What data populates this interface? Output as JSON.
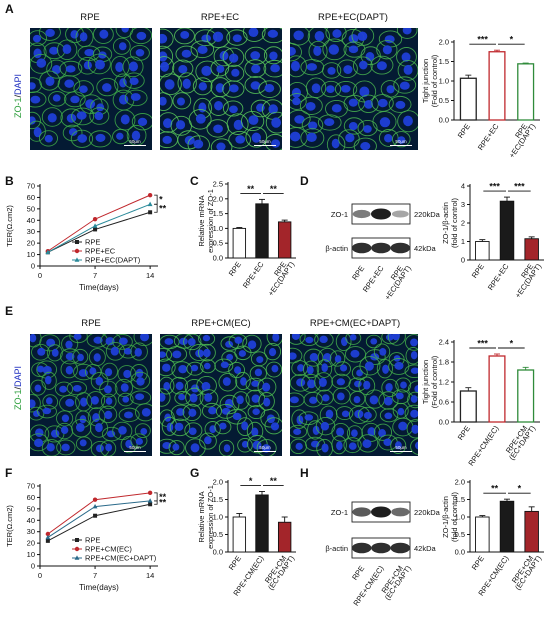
{
  "panel_labels": [
    "A",
    "B",
    "C",
    "D",
    "E",
    "F",
    "G",
    "H"
  ],
  "micro_rows": [
    {
      "label": "A",
      "stain": {
        "zo1": "ZO-1",
        "sep": "/",
        "dapi": "DAPI"
      },
      "titles": [
        "RPE",
        "RPE+EC",
        "RPE+EC(DAPT)"
      ],
      "scale_label": "50μm"
    },
    {
      "label": "E",
      "stain": {
        "zo1": "ZO-1",
        "sep": "/",
        "dapi": "DAPI"
      },
      "titles": [
        "RPE",
        "RPE+CM(EC)",
        "RPE+CM(EC+DAPT)"
      ],
      "scale_label": "50μm"
    }
  ],
  "blots": [
    {
      "label": "D",
      "rows": [
        {
          "protein": "ZO-1",
          "size": "220kDa",
          "intensity": [
            0.45,
            1.0,
            0.2
          ]
        },
        {
          "protein": "β-actin",
          "size": "42kDa",
          "intensity": [
            0.9,
            0.9,
            0.9
          ]
        }
      ],
      "lanes": [
        "RPE",
        "RPE+EC",
        "RPE\n+EC(DAPT)"
      ]
    },
    {
      "label": "H",
      "rows": [
        {
          "protein": "ZO-1",
          "size": "220kDa",
          "intensity": [
            0.65,
            1.0,
            0.55
          ]
        },
        {
          "protein": "β-actin",
          "size": "42kDa",
          "intensity": [
            0.9,
            0.9,
            0.9
          ]
        }
      ],
      "lanes": [
        "RPE",
        "RPE+CM(EC)",
        "RPE+CM\n(EC+DAPT)"
      ]
    }
  ],
  "chart_data": [
    {
      "id": "A-bar",
      "type": "bar",
      "categories": [
        "RPE",
        "RPE+EC",
        "RPE\n+EC(DAPT)"
      ],
      "values": [
        1.07,
        1.75,
        1.44
      ],
      "errors": [
        0.08,
        0.04,
        0.02
      ],
      "ylabel": "Tight junction\n(Fold of control)",
      "ylim": [
        0,
        2.0
      ],
      "yticks": [
        0,
        0.5,
        1.0,
        1.5,
        2.0
      ],
      "colors": [
        "#222222",
        "#c0282d",
        "#2f8b3a"
      ],
      "significance": [
        {
          "from": 0,
          "to": 1,
          "label": "***"
        },
        {
          "from": 1,
          "to": 2,
          "label": "*"
        }
      ]
    },
    {
      "id": "B-line",
      "type": "line",
      "x": [
        1,
        7,
        14
      ],
      "series": [
        {
          "name": "RPE",
          "values": [
            12,
            32,
            47
          ],
          "color": "#222222"
        },
        {
          "name": "RPE+EC",
          "values": [
            13,
            41,
            62
          ],
          "color": "#c0282d"
        },
        {
          "name": "RPE+EC(DAPT)",
          "values": [
            12,
            35,
            54
          ],
          "color": "#2a8a9a"
        }
      ],
      "xlabel": "Time(days)",
      "ylabel": "TER(Ω.cm2)",
      "xlim": [
        0,
        15
      ],
      "xticks": [
        0,
        7,
        14
      ],
      "ylim": [
        0,
        70
      ],
      "yticks": [
        0,
        10,
        20,
        30,
        40,
        50,
        60,
        70
      ],
      "significance": [
        {
          "label": "*"
        },
        {
          "label": "**"
        }
      ]
    },
    {
      "id": "C-bar",
      "type": "bar",
      "categories": [
        "RPE",
        "RPE+EC",
        "RPE\n+EC(DAPT)"
      ],
      "values": [
        1.0,
        1.83,
        1.22
      ],
      "errors": [
        0.03,
        0.15,
        0.06
      ],
      "ylabel": "Relative mRNA\nexpression of ZO-1",
      "ylim": [
        0,
        2.5
      ],
      "yticks": [
        0,
        0.5,
        1.0,
        1.5,
        2.0,
        2.5
      ],
      "colors": [
        "#ffffff",
        "#1a1a1a",
        "#a3252a"
      ],
      "significance": [
        {
          "from": 0,
          "to": 1,
          "label": "**"
        },
        {
          "from": 1,
          "to": 2,
          "label": "**"
        }
      ]
    },
    {
      "id": "D-bar",
      "type": "bar",
      "categories": [
        "RPE",
        "RPE+EC",
        "RPE\n+EC(DAPT)"
      ],
      "values": [
        1.0,
        3.18,
        1.15
      ],
      "errors": [
        0.1,
        0.22,
        0.1
      ],
      "ylabel": "ZO-1/β-actin\n(fold of control)",
      "ylim": [
        0,
        4
      ],
      "yticks": [
        0,
        1,
        2,
        3,
        4
      ],
      "colors": [
        "#ffffff",
        "#1a1a1a",
        "#a3252a"
      ],
      "significance": [
        {
          "from": 0,
          "to": 1,
          "label": "***"
        },
        {
          "from": 1,
          "to": 2,
          "label": "***"
        }
      ]
    },
    {
      "id": "E-bar",
      "type": "bar",
      "categories": [
        "RPE",
        "RPE+CM(EC)",
        "RPE+CM\n(EC+DAPT)"
      ],
      "values": [
        0.93,
        1.98,
        1.56
      ],
      "errors": [
        0.1,
        0.06,
        0.08
      ],
      "ylabel": "Tight junction\n(Fold of control)",
      "ylim": [
        0,
        2.4
      ],
      "yticks": [
        0,
        0.6,
        1.2,
        1.8,
        2.4
      ],
      "colors": [
        "#222222",
        "#c0282d",
        "#2f8b3a"
      ],
      "significance": [
        {
          "from": 0,
          "to": 1,
          "label": "***"
        },
        {
          "from": 1,
          "to": 2,
          "label": "*"
        }
      ]
    },
    {
      "id": "F-line",
      "type": "line",
      "x": [
        1,
        7,
        14
      ],
      "series": [
        {
          "name": "RPE",
          "values": [
            22,
            44,
            54
          ],
          "color": "#222222"
        },
        {
          "name": "RPE+CM(EC)",
          "values": [
            28,
            58,
            64
          ],
          "color": "#c0282d"
        },
        {
          "name": "RPE+CM(EC+DAPT)",
          "values": [
            25,
            52,
            57
          ],
          "color": "#2a6a8a"
        }
      ],
      "xlabel": "Time(days)",
      "ylabel": "TER(Ω.cm2)",
      "xlim": [
        0,
        15
      ],
      "xticks": [
        0,
        7,
        14
      ],
      "ylim": [
        0,
        70
      ],
      "yticks": [
        0,
        10,
        20,
        30,
        40,
        50,
        60,
        70
      ],
      "significance": [
        {
          "label": "**"
        },
        {
          "label": "**"
        }
      ]
    },
    {
      "id": "G-bar",
      "type": "bar",
      "categories": [
        "RPE",
        "RPE+CM(EC)",
        "RPE+CM\n(EC+DAPT)"
      ],
      "values": [
        1.0,
        1.63,
        0.85
      ],
      "errors": [
        0.1,
        0.1,
        0.15
      ],
      "ylabel": "Relative mRNA\nexpression of ZO-1",
      "ylim": [
        0,
        2.0
      ],
      "yticks": [
        0,
        0.5,
        1.0,
        1.5,
        2.0
      ],
      "colors": [
        "#ffffff",
        "#1a1a1a",
        "#a3252a"
      ],
      "significance": [
        {
          "from": 0,
          "to": 1,
          "label": "*"
        },
        {
          "from": 1,
          "to": 2,
          "label": "**"
        }
      ]
    },
    {
      "id": "H-bar",
      "type": "bar",
      "categories": [
        "RPE",
        "RPE+CM(EC)",
        "RPE+CM\n(EC+DAPT)"
      ],
      "values": [
        1.0,
        1.45,
        1.16
      ],
      "errors": [
        0.04,
        0.06,
        0.13
      ],
      "ylabel": "ZO-1/β-actin\n(fold of control)",
      "ylim": [
        0,
        2.0
      ],
      "yticks": [
        0,
        0.5,
        1.0,
        1.5,
        2.0
      ],
      "colors": [
        "#ffffff",
        "#1a1a1a",
        "#a3252a"
      ],
      "significance": [
        {
          "from": 0,
          "to": 1,
          "label": "**"
        },
        {
          "from": 1,
          "to": 2,
          "label": "*"
        }
      ]
    }
  ]
}
